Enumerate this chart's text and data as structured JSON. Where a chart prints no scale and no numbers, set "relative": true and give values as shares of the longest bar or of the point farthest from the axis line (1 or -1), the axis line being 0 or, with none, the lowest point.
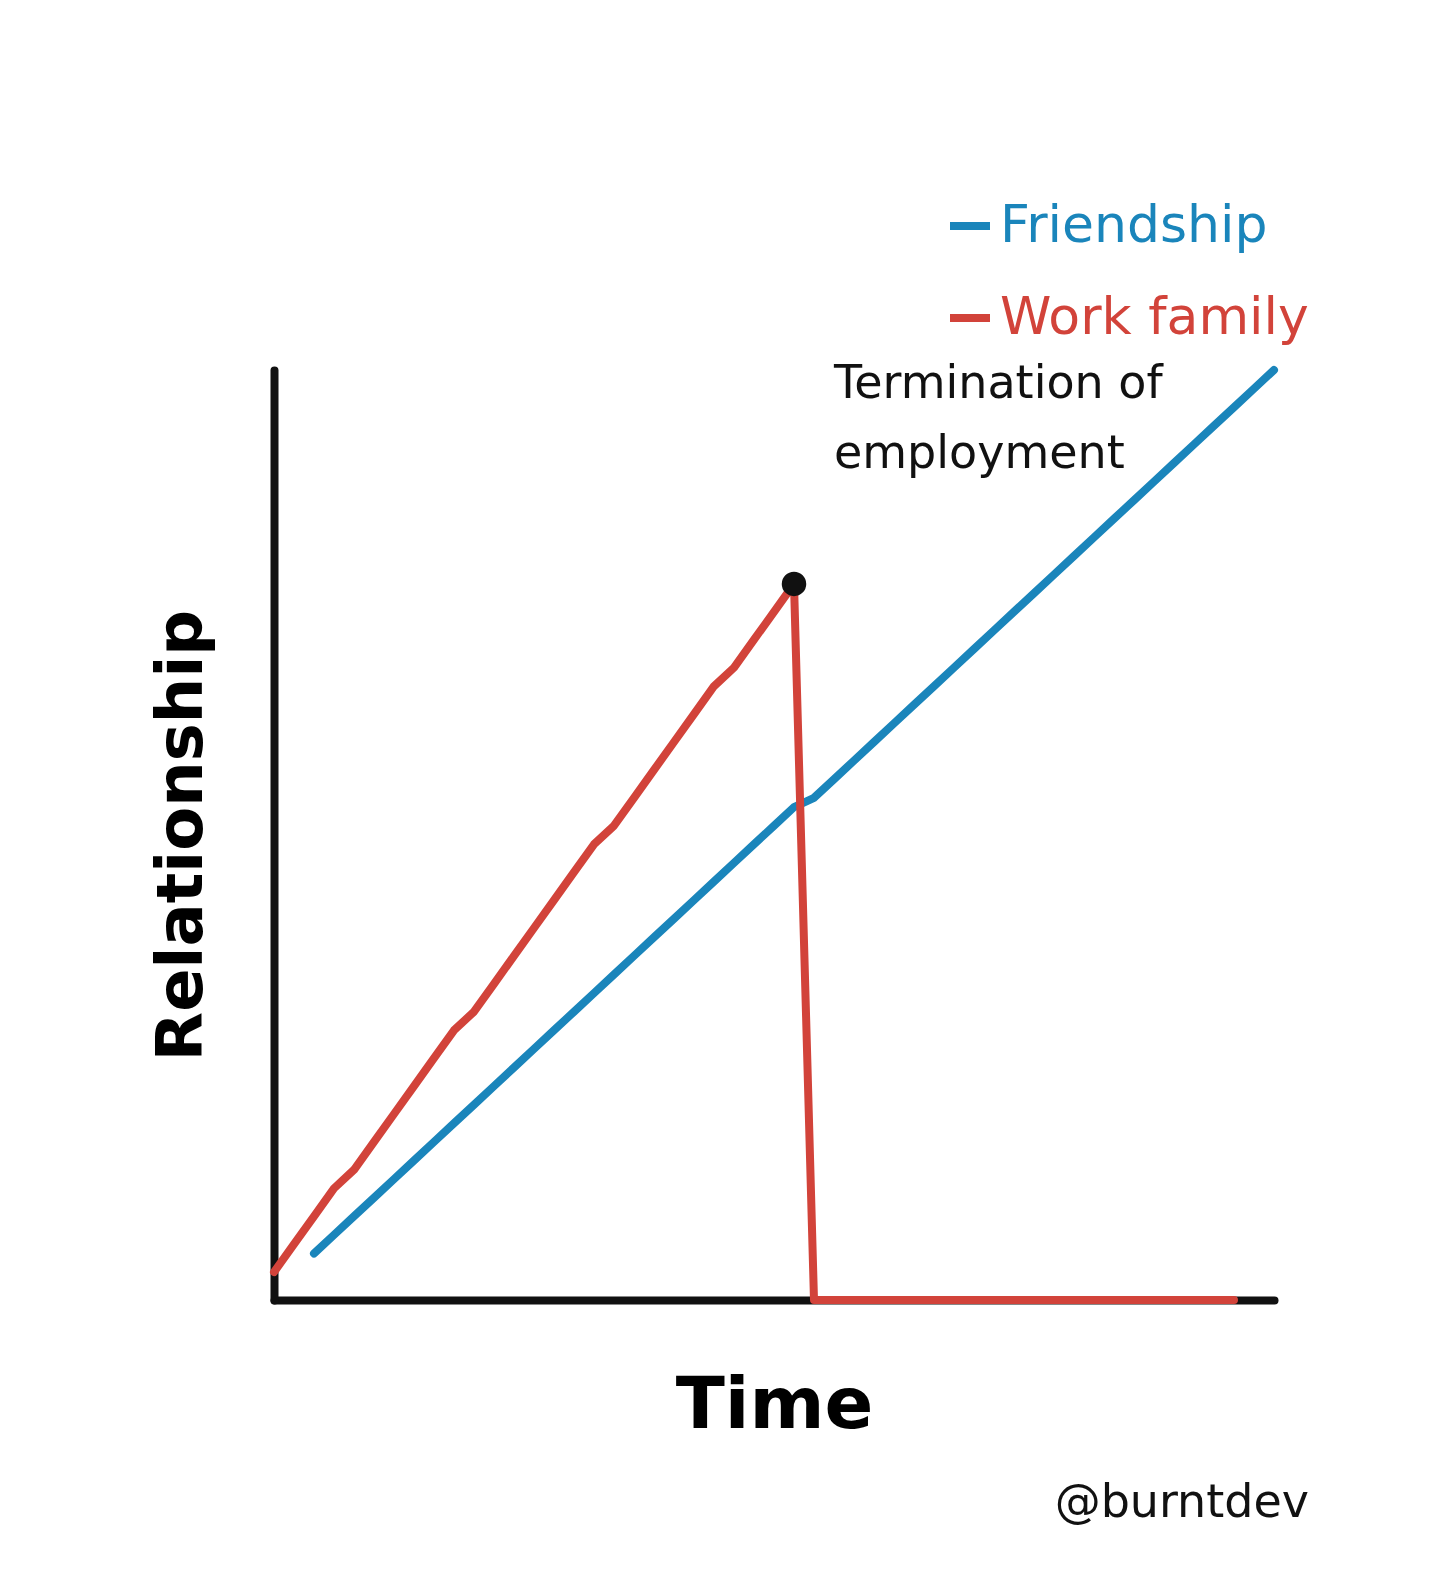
{
  "chart_data": {
    "type": "line",
    "relative": true,
    "xlabel": "Time",
    "ylabel": "Relationship",
    "legend": "top right",
    "categories": [
      null,
      null,
      null,
      null,
      null,
      null,
      null,
      null,
      null,
      null,
      null,
      null,
      null,
      null,
      null,
      null,
      null,
      null,
      null,
      null,
      null,
      null,
      null,
      null,
      null,
      null,
      null,
      null,
      null,
      null,
      null,
      null,
      null,
      null,
      null,
      null,
      null,
      null,
      null,
      null,
      null,
      null,
      null,
      null,
      null,
      null,
      null,
      null,
      null,
      null,
      null
    ],
    "series": [
      {
        "name": "Friendship",
        "color": "#1a85bb",
        "values": [
          null,
          null,
          0.05,
          0.07,
          0.09,
          0.11,
          0.13,
          0.15,
          0.17,
          0.19,
          0.21,
          0.23,
          0.25,
          0.27,
          0.29,
          0.31,
          0.33,
          0.35,
          0.37,
          0.39,
          0.41,
          0.43,
          0.45,
          0.47,
          0.49,
          0.51,
          0.53,
          0.54,
          0.56,
          0.58,
          0.6,
          0.62,
          0.64,
          0.66,
          0.68,
          0.7,
          0.72,
          0.74,
          0.76,
          0.78,
          0.8,
          0.82,
          0.84,
          0.86,
          0.88,
          0.9,
          0.92,
          0.94,
          0.96,
          0.98,
          1
        ]
      },
      {
        "name": "Work family",
        "color": "#d2433a",
        "values": [
          0.03,
          0.06,
          0.09,
          0.12,
          0.14,
          0.17,
          0.2,
          0.23,
          0.26,
          0.29,
          0.31,
          0.34,
          0.37,
          0.4,
          0.43,
          0.46,
          0.49,
          0.51,
          0.54,
          0.57,
          0.6,
          0.63,
          0.66,
          0.68,
          0.71,
          0.74,
          0.77,
          0,
          0,
          0,
          0,
          0,
          0,
          0,
          0,
          0,
          0,
          0,
          0,
          0,
          0,
          0,
          0,
          0,
          0,
          0,
          0,
          0,
          0,
          null,
          null
        ]
      }
    ],
    "annotations": [
      "Termination of employment",
      "@burntdev"
    ]
  }
}
